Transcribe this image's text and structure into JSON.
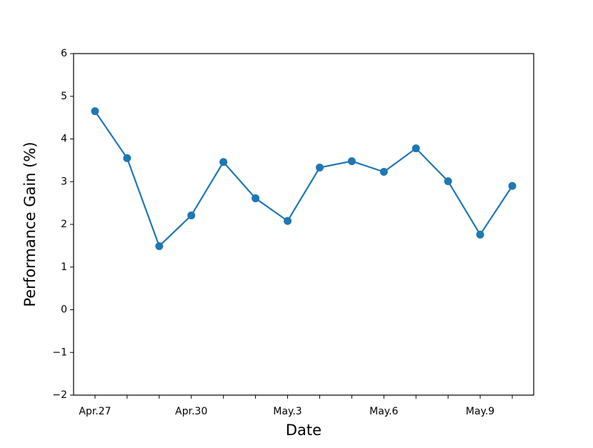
{
  "chart_data": {
    "type": "line",
    "x_label": "Date",
    "y_label": "Performance Gain (%)",
    "categories": [
      "Apr.27",
      null,
      null,
      "Apr.30",
      null,
      null,
      "May.3",
      null,
      null,
      "May.6",
      null,
      null,
      "May.9",
      null
    ],
    "values": [
      4.65,
      3.55,
      1.49,
      2.21,
      3.46,
      2.61,
      2.08,
      3.33,
      3.48,
      3.23,
      3.78,
      3.01,
      1.76,
      2.9
    ],
    "color": "#1f77b4",
    "ylim": [
      -2,
      6
    ],
    "yticks": [
      {
        "value": -2,
        "label": "−2"
      },
      {
        "value": -1,
        "label": "−1"
      },
      0,
      1,
      2,
      3,
      4,
      5,
      6
    ],
    "grid": false
  }
}
